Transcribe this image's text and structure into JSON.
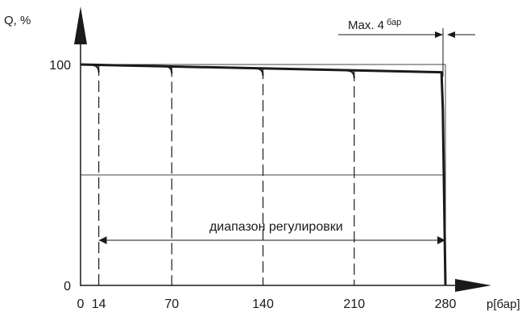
{
  "chart_data": {
    "type": "line",
    "ylabel": "Q, %",
    "xlabel": "p[бар]",
    "x_ticks": [
      0,
      14,
      70,
      140,
      210,
      280
    ],
    "y_ticks": [
      0,
      100
    ],
    "xlim": [
      0,
      280
    ],
    "ylim": [
      0,
      100
    ],
    "grid": true,
    "gridline_y": [
      50
    ],
    "gridline_x": [
      280
    ],
    "series": [
      {
        "style": "solid",
        "x": [
          0,
          277,
          278,
          280
        ],
        "y": [
          100,
          96.5,
          80,
          0
        ]
      },
      {
        "style": "dashed",
        "x": [
          14,
          14
        ],
        "y": [
          100,
          0
        ]
      },
      {
        "style": "dashed",
        "x": [
          70,
          70
        ],
        "y": [
          99.5,
          0
        ]
      },
      {
        "style": "dashed",
        "x": [
          140,
          140
        ],
        "y": [
          98.5,
          0
        ]
      },
      {
        "style": "dashed",
        "x": [
          210,
          210
        ],
        "y": [
          97.5,
          0
        ]
      }
    ],
    "annotations": {
      "range_label": "диапазон регулировки",
      "range_from": 14,
      "range_to": 280,
      "max_label_text": "Max. 4",
      "max_label_unit": "бар"
    }
  }
}
